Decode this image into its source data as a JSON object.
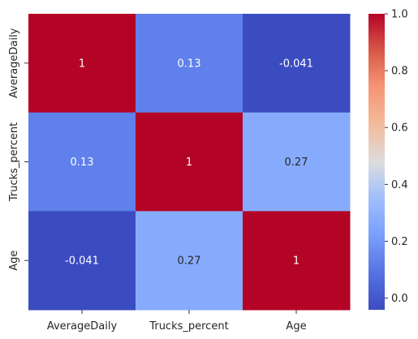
{
  "chart_data": {
    "type": "heatmap",
    "title": "",
    "xlabel": "",
    "ylabel": "",
    "x_categories": [
      "AverageDaily",
      "Trucks_percent",
      "Age"
    ],
    "y_categories": [
      "AverageDaily",
      "Trucks_percent",
      "Age"
    ],
    "values": [
      [
        1,
        0.13,
        -0.041
      ],
      [
        0.13,
        1,
        0.27
      ],
      [
        -0.041,
        0.27,
        1
      ]
    ],
    "annotations": [
      [
        "1",
        "0.13",
        "-0.041"
      ],
      [
        "0.13",
        "1",
        "0.27"
      ],
      [
        "-0.041",
        "0.27",
        "1"
      ]
    ],
    "colormap": "coolwarm",
    "colorbar": {
      "min": -0.041,
      "max": 1,
      "ticks": [
        0.0,
        0.2,
        0.4,
        0.6,
        0.8,
        1.0
      ],
      "tick_labels": [
        "0.0",
        "0.2",
        "0.4",
        "0.6",
        "0.8",
        "1.0"
      ]
    },
    "colorbar_placement": "right"
  }
}
